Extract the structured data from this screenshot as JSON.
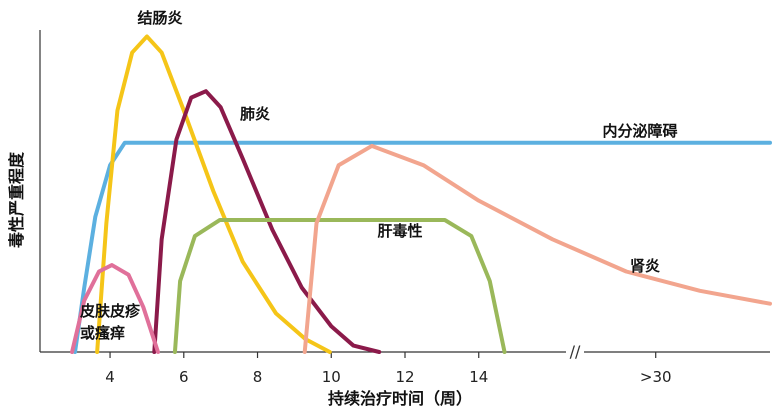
{
  "chart_data": {
    "type": "line",
    "x_label": "持续治疗时间（周）",
    "y_label": "毒性严重程度",
    "xlim": [
      2.1,
      21.9
    ],
    "ylim": [
      0,
      100
    ],
    "xticks": [
      4,
      6,
      8,
      10,
      12,
      14,
      {
        "value": 18.8,
        "label": ">30"
      }
    ],
    "series": [
      {
        "name": "内分泌障碍",
        "color": "#5cb0e0",
        "x": [
          3.05,
          3.3,
          3.6,
          4.0,
          4.4,
          21.9
        ],
        "values": [
          0,
          20,
          42,
          58,
          65,
          65
        ]
      },
      {
        "name": "结肠炎",
        "color": "#f5c518",
        "x": [
          3.65,
          3.9,
          4.2,
          4.6,
          5.0,
          5.4,
          6.0,
          6.8,
          7.6,
          8.5,
          9.3,
          9.96
        ],
        "values": [
          0,
          40,
          75,
          93,
          98,
          93,
          75,
          50,
          28,
          12,
          4,
          0
        ]
      },
      {
        "name": "肺炎",
        "color": "#8b1a4a",
        "x": [
          5.2,
          5.4,
          5.8,
          6.2,
          6.6,
          7.0,
          7.6,
          8.4,
          9.2,
          10.0,
          10.6,
          11.3
        ],
        "values": [
          0,
          35,
          66,
          79,
          81,
          76,
          60,
          38,
          20,
          8,
          2,
          0
        ]
      },
      {
        "name": "皮肤皮疹或瘙痒",
        "color": "#e0709a",
        "x": [
          2.97,
          3.3,
          3.7,
          4.05,
          4.5,
          4.9,
          5.3
        ],
        "values": [
          0,
          16,
          25,
          27,
          24,
          14,
          0
        ]
      },
      {
        "name": "肝毒性",
        "color": "#9ab85a",
        "x": [
          5.76,
          5.9,
          6.3,
          6.98,
          13.08,
          13.8,
          14.3,
          14.7
        ],
        "values": [
          0,
          22,
          36,
          41,
          41,
          36,
          22,
          0
        ]
      },
      {
        "name": "肾炎",
        "color": "#f2a58e",
        "x": [
          9.28,
          9.6,
          10.2,
          11.1,
          12.5,
          14,
          16,
          18,
          20,
          21.9
        ],
        "values": [
          0,
          40,
          58,
          64,
          58,
          47,
          35,
          25,
          19,
          15
        ]
      }
    ]
  }
}
